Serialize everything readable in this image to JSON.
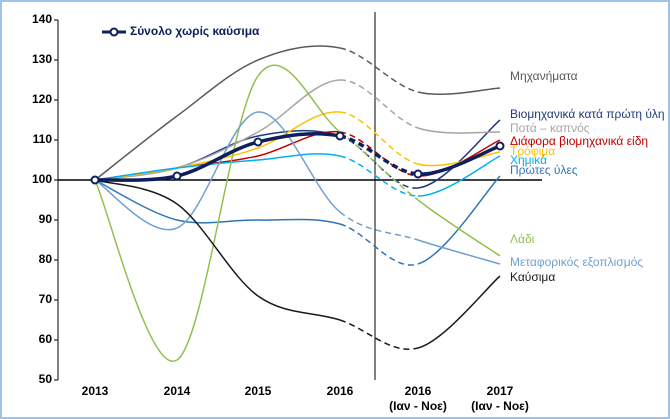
{
  "chart_data": {
    "type": "line",
    "categories": [
      "2013",
      "2014",
      "2015",
      "2016",
      "2016\n(Ιαν - Νοε)",
      "2017\n(Ιαν - Νοε)"
    ],
    "ylim": [
      50,
      140
    ],
    "yticks": [
      50,
      60,
      70,
      80,
      90,
      100,
      110,
      120,
      130,
      140
    ],
    "series": [
      {
        "name": "Μηχανήματα",
        "color": "#595959",
        "values": [
          100,
          116,
          130,
          133,
          122,
          123
        ]
      },
      {
        "name": "Βιομηχανικά κατά πρώτη ύλη",
        "color": "#1f3a7a",
        "values": [
          100,
          103,
          111,
          111,
          98,
          115
        ]
      },
      {
        "name": "Ποτά – καπνός",
        "color": "#a6a6a6",
        "values": [
          100,
          103,
          112,
          125,
          113,
          112
        ]
      },
      {
        "name": "Διάφορα βιομηχανικά είδη",
        "color": "#c00000",
        "values": [
          100,
          103,
          106,
          112,
          101,
          110
        ]
      },
      {
        "name": "Τρόφιμα",
        "color": "#ffc000",
        "values": [
          100,
          103,
          108,
          117,
          104,
          107
        ]
      },
      {
        "name": "Χημικά",
        "color": "#00b0f0",
        "values": [
          100,
          103,
          105,
          106,
          96,
          106
        ]
      },
      {
        "name": "Πρώτες ύλες",
        "color": "#2e75b6",
        "values": [
          100,
          90,
          90,
          89,
          79,
          101
        ]
      },
      {
        "name": "Λάδι",
        "color": "#92c050",
        "values": [
          100,
          55,
          126,
          112,
          95,
          81
        ]
      },
      {
        "name": "Μεταφορικός εξοπλισμός",
        "color": "#6fa0d0",
        "values": [
          100,
          88,
          117,
          92,
          85,
          79
        ]
      },
      {
        "name": "Καύσιμα",
        "color": "#1a1a1a",
        "values": [
          100,
          94,
          71,
          65,
          58,
          76
        ]
      },
      {
        "name": "Σύνολο χωρίς καύσιμα",
        "color": "#0d1f5c",
        "values": [
          100,
          101,
          109.5,
          111,
          101.5,
          108.5
        ]
      }
    ]
  }
}
